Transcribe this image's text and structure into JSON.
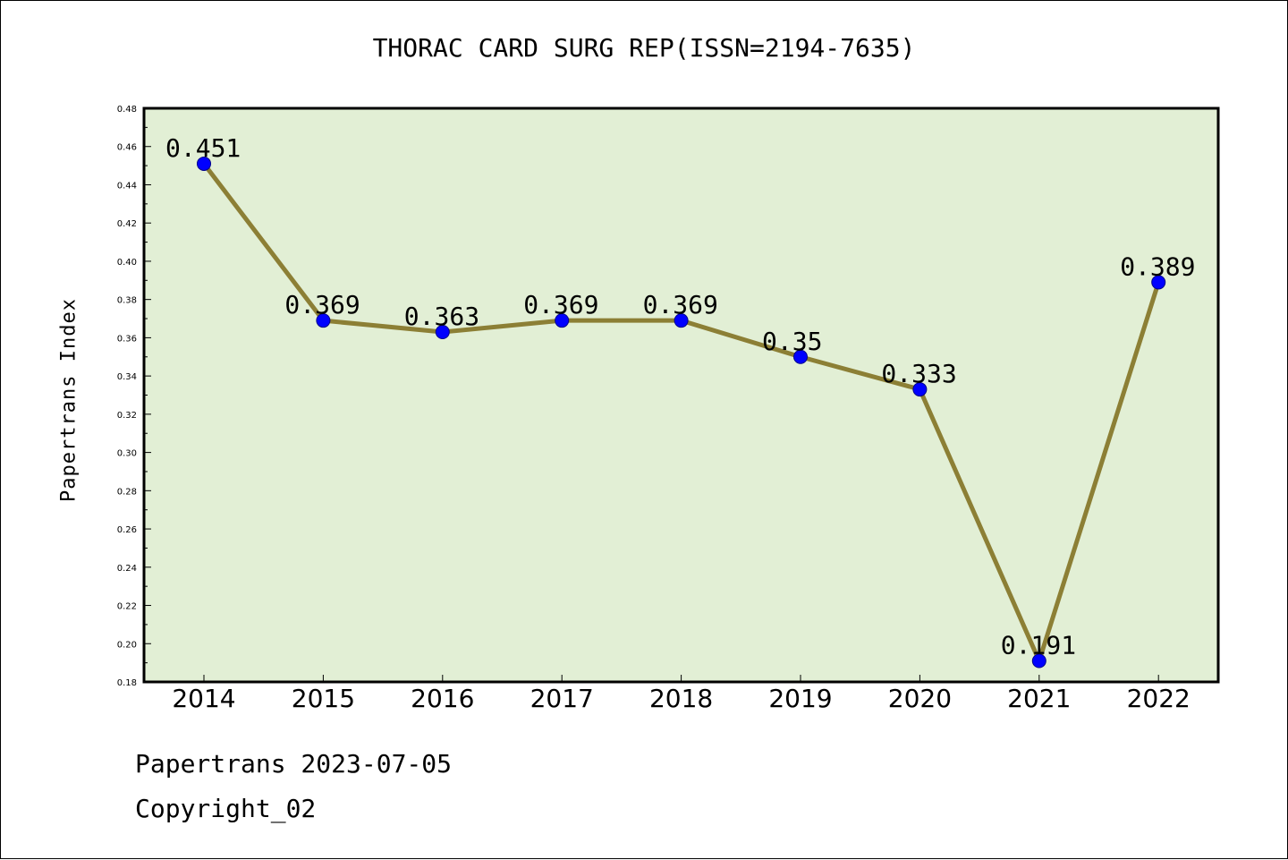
{
  "chart_data": {
    "type": "line",
    "title": "THORAC CARD SURG REP(ISSN=2194-7635)",
    "xlabel": "",
    "ylabel": "Papertrans Index",
    "categories": [
      "2014",
      "2015",
      "2016",
      "2017",
      "2018",
      "2019",
      "2020",
      "2021",
      "2022"
    ],
    "values": [
      0.451,
      0.369,
      0.363,
      0.369,
      0.369,
      0.35,
      0.333,
      0.191,
      0.389
    ],
    "data_labels": [
      "0.451",
      "0.369",
      "0.363",
      "0.369",
      "0.369",
      "0.35",
      "0.333",
      "0.191",
      "0.389"
    ],
    "ylim": [
      0.18,
      0.48
    ],
    "yticks": [
      "0.18",
      "0.20",
      "0.22",
      "0.24",
      "0.26",
      "0.28",
      "0.30",
      "0.32",
      "0.34",
      "0.36",
      "0.38",
      "0.40",
      "0.42",
      "0.44",
      "0.46",
      "0.48"
    ],
    "grid": false,
    "legend": "none",
    "colors": {
      "plot_background": "#e2efd5",
      "line": "#8c7f35",
      "marker": "#0000ff"
    }
  },
  "footer": {
    "date": "Papertrans 2023-07-05",
    "copyright": "Copyright_02"
  }
}
